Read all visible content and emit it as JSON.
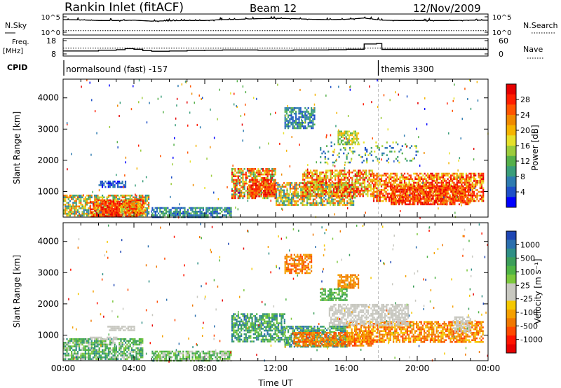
{
  "header": {
    "station": "Rankin Inlet (fitACF)",
    "beam": "Beam 12",
    "date": "12/Nov/2009"
  },
  "strip_labels": {
    "nsky": "N.Sky",
    "nsearch": "N.Search",
    "freq": "Freq.",
    "mhz": "[MHz]",
    "nave": "Nave",
    "cpid": "CPID"
  },
  "chart_data": [
    {
      "type": "line",
      "name": "noise-strip",
      "left_ticks": [
        "10^5",
        "10^0"
      ],
      "right_ticks": [
        "10^5",
        "10^0"
      ],
      "series": [
        {
          "name": "N.Sky",
          "x": [
            0,
            1,
            2,
            3,
            4,
            5,
            6,
            7,
            8,
            9,
            10,
            11,
            12,
            13,
            14,
            15,
            16,
            17,
            18,
            19,
            20,
            21,
            22,
            23,
            24
          ],
          "values": [
            4.1,
            4.0,
            3.8,
            3.8,
            3.9,
            3.6,
            3.7,
            3.8,
            3.8,
            4.1,
            4.2,
            4.4,
            4.5,
            4.4,
            4.2,
            4.1,
            4.2,
            4.6,
            3.9,
            3.8,
            3.8,
            3.8,
            3.8,
            3.9,
            3.9
          ]
        },
        {
          "name": "N.Search",
          "x": [
            0,
            24
          ],
          "values": [
            0.5,
            0.5
          ]
        }
      ]
    },
    {
      "type": "line",
      "name": "freq-strip",
      "left_ticks": [
        "18",
        "8"
      ],
      "right_ticks": [
        "60",
        "0"
      ],
      "series": [
        {
          "name": "Freq.",
          "x": [
            0,
            1,
            2,
            3,
            3.5,
            4,
            4.5,
            5,
            6,
            7,
            8,
            9,
            10,
            11,
            12,
            13,
            14,
            15,
            16,
            17,
            17.7,
            18,
            24
          ],
          "values": [
            10.2,
            10.2,
            10.8,
            11.2,
            12,
            11.5,
            10.5,
            10,
            10.2,
            10.6,
            10.8,
            11,
            11,
            10.8,
            10.8,
            11,
            11,
            11.2,
            11.5,
            15.5,
            15.8,
            11.4,
            11.4
          ]
        },
        {
          "name": "Nave",
          "x": [
            0,
            24
          ],
          "values": [
            26,
            26
          ]
        }
      ]
    },
    {
      "type": "table",
      "name": "cpid-strip",
      "segments": [
        {
          "label": "normalsound (fast) -157",
          "start": 0,
          "end": 17.8
        },
        {
          "label": "themis 3300",
          "start": 17.8,
          "end": 24
        }
      ]
    },
    {
      "type": "heatmap",
      "name": "power",
      "title": "",
      "xlabel": "",
      "ylabel": "Slant Range [km]",
      "xlim": [
        0,
        24
      ],
      "ylim": [
        180,
        4600
      ],
      "yticks": [
        1000,
        2000,
        3000,
        4000
      ],
      "colorbar": {
        "label": "Power [dB]",
        "ticks": [
          "28",
          "24",
          "20",
          "16",
          "12",
          "8",
          "4"
        ],
        "colors": [
          "#0000ff",
          "#1e50c8",
          "#2e7bb0",
          "#3a9e7a",
          "#55b04a",
          "#9ccc3c",
          "#e6e02a",
          "#f5b400",
          "#f08a00",
          "#ff5500",
          "#ff1e00",
          "#e60000"
        ]
      },
      "regions": [
        {
          "t0": 0.0,
          "t1": 4.8,
          "r0": 200,
          "r1": 900,
          "v0": 2,
          "v1": 9
        },
        {
          "t0": 1.5,
          "t1": 4.5,
          "r0": 200,
          "r1": 750,
          "v0": 6,
          "v1": 11
        },
        {
          "t0": 2.2,
          "t1": 3.2,
          "r0": 200,
          "r1": 700,
          "v0": 9,
          "v1": 11
        },
        {
          "t0": 3.2,
          "t1": 4.6,
          "r0": 300,
          "r1": 650,
          "v0": 5,
          "v1": 10
        },
        {
          "t0": 2.0,
          "t1": 3.5,
          "r0": 1150,
          "r1": 1350,
          "v0": 0,
          "v1": 2
        },
        {
          "t0": 9.5,
          "t1": 12.0,
          "r0": 800,
          "r1": 1750,
          "v0": 3,
          "v1": 11
        },
        {
          "t0": 10.5,
          "t1": 12.0,
          "r0": 850,
          "r1": 1400,
          "v0": 8,
          "v1": 11
        },
        {
          "t0": 12.0,
          "t1": 16.5,
          "r0": 550,
          "r1": 1300,
          "v0": 2,
          "v1": 9
        },
        {
          "t0": 13.5,
          "t1": 17.5,
          "r0": 850,
          "r1": 1700,
          "v0": 5,
          "v1": 11
        },
        {
          "t0": 17.5,
          "t1": 23.7,
          "r0": 700,
          "r1": 1600,
          "v0": 6,
          "v1": 11
        },
        {
          "t0": 18.5,
          "t1": 23.0,
          "r0": 600,
          "r1": 1200,
          "v0": 8,
          "v1": 11
        },
        {
          "t0": 12.5,
          "t1": 14.2,
          "r0": 3000,
          "r1": 3700,
          "v0": 1,
          "v1": 4
        },
        {
          "t0": 15.5,
          "t1": 16.7,
          "r0": 2500,
          "r1": 2950,
          "v0": 4,
          "v1": 7
        },
        {
          "t0": 5.0,
          "t1": 9.5,
          "r0": 200,
          "r1": 500,
          "v0": 1,
          "v1": 4
        },
        {
          "t0": 14.5,
          "t1": 20.0,
          "r0": 1900,
          "r1": 2600,
          "v0": 1,
          "v1": 6,
          "sparse": 1
        }
      ]
    },
    {
      "type": "heatmap",
      "name": "velocity",
      "title": "",
      "xlabel": "Time UT",
      "ylabel": "Slant Range [km]",
      "xlim": [
        0,
        24
      ],
      "ylim": [
        180,
        4600
      ],
      "yticks": [
        1000,
        2000,
        3000,
        4000
      ],
      "xticks": [
        "00:00",
        "04:00",
        "08:00",
        "12:00",
        "16:00",
        "20:00",
        "00:00"
      ],
      "colorbar": {
        "label": "Velocity [m s⁻¹]",
        "ticks": [
          "1000",
          "500",
          "100",
          "25",
          "-25",
          "-100",
          "-500",
          "-1000"
        ],
        "colors": [
          "#1e46b4",
          "#2b6fae",
          "#2f8f86",
          "#3c9e5a",
          "#4fb445",
          "#7cc83c",
          "#c8c8c0",
          "#c8c8c0",
          "#f5c800",
          "#f5a000",
          "#f07800",
          "#ff4a00",
          "#ff1400",
          "#e60000"
        ]
      },
      "regions": [
        {
          "t0": 0.0,
          "t1": 4.5,
          "r0": 200,
          "r1": 900,
          "v0": 2,
          "v1": 6
        },
        {
          "t0": 1.5,
          "t1": 3.0,
          "r0": 850,
          "r1": 950,
          "v0": 6,
          "v1": 7
        },
        {
          "t0": 2.5,
          "t1": 4.0,
          "r0": 1150,
          "r1": 1300,
          "v0": 6,
          "v1": 7
        },
        {
          "t0": 9.5,
          "t1": 12.5,
          "r0": 800,
          "r1": 1700,
          "v0": 1,
          "v1": 5
        },
        {
          "t0": 12.5,
          "t1": 16.0,
          "r0": 650,
          "r1": 1300,
          "v0": 1,
          "v1": 5
        },
        {
          "t0": 13.0,
          "t1": 17.5,
          "r0": 650,
          "r1": 1100,
          "v0": 9,
          "v1": 11
        },
        {
          "t0": 16.0,
          "t1": 23.7,
          "r0": 750,
          "r1": 1450,
          "v0": 8,
          "v1": 11
        },
        {
          "t0": 15.0,
          "t1": 19.5,
          "r0": 1300,
          "r1": 2000,
          "v0": 6,
          "v1": 7
        },
        {
          "t0": 22.0,
          "t1": 23.0,
          "r0": 1100,
          "r1": 1600,
          "v0": 6,
          "v1": 7
        },
        {
          "t0": 12.5,
          "t1": 14.0,
          "r0": 3000,
          "r1": 3600,
          "v0": 9,
          "v1": 11
        },
        {
          "t0": 15.5,
          "t1": 16.7,
          "r0": 2500,
          "r1": 2950,
          "v0": 9,
          "v1": 10
        },
        {
          "t0": 14.5,
          "t1": 16.0,
          "r0": 2100,
          "r1": 2500,
          "v0": 3,
          "v1": 5
        },
        {
          "t0": 5.0,
          "t1": 9.5,
          "r0": 200,
          "r1": 500,
          "v0": 3,
          "v1": 6
        }
      ]
    }
  ]
}
